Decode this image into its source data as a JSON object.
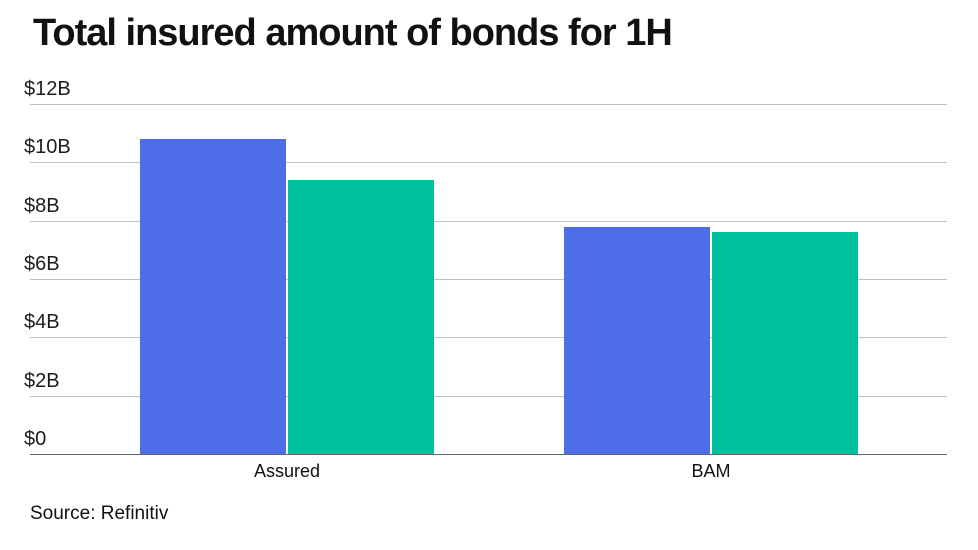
{
  "page": {
    "title": "Total insured amount of bonds for 1H",
    "source_note": "Source: Refinitiv"
  },
  "colors": {
    "series_blue": "#4D6EE8",
    "series_green": "#00C19E",
    "gridline": "#c1c1c1",
    "axis_baseline": "#666666",
    "text": "#111111",
    "background": "#ffffff"
  },
  "chart_data": {
    "type": "bar",
    "title": "Total insured amount of bonds for 1H",
    "categories": [
      "Assured",
      "BAM"
    ],
    "series": [
      {
        "name": "blue",
        "color_key": "series_blue",
        "values": [
          10.8,
          7.8
        ]
      },
      {
        "name": "green",
        "color_key": "series_green",
        "values": [
          9.4,
          7.6
        ]
      }
    ],
    "unit": "USD billions",
    "ylim": [
      0,
      12
    ],
    "yticks": [
      {
        "label": "$12B",
        "value": 12
      },
      {
        "label": "$10B",
        "value": 10
      },
      {
        "label": "$8B",
        "value": 8
      },
      {
        "label": "$6B",
        "value": 6
      },
      {
        "label": "$4B",
        "value": 4
      },
      {
        "label": "$2B",
        "value": 2
      },
      {
        "label": "$0",
        "value": 0
      }
    ],
    "grid": true,
    "legend": false,
    "source": "Source: Refinitiv"
  }
}
